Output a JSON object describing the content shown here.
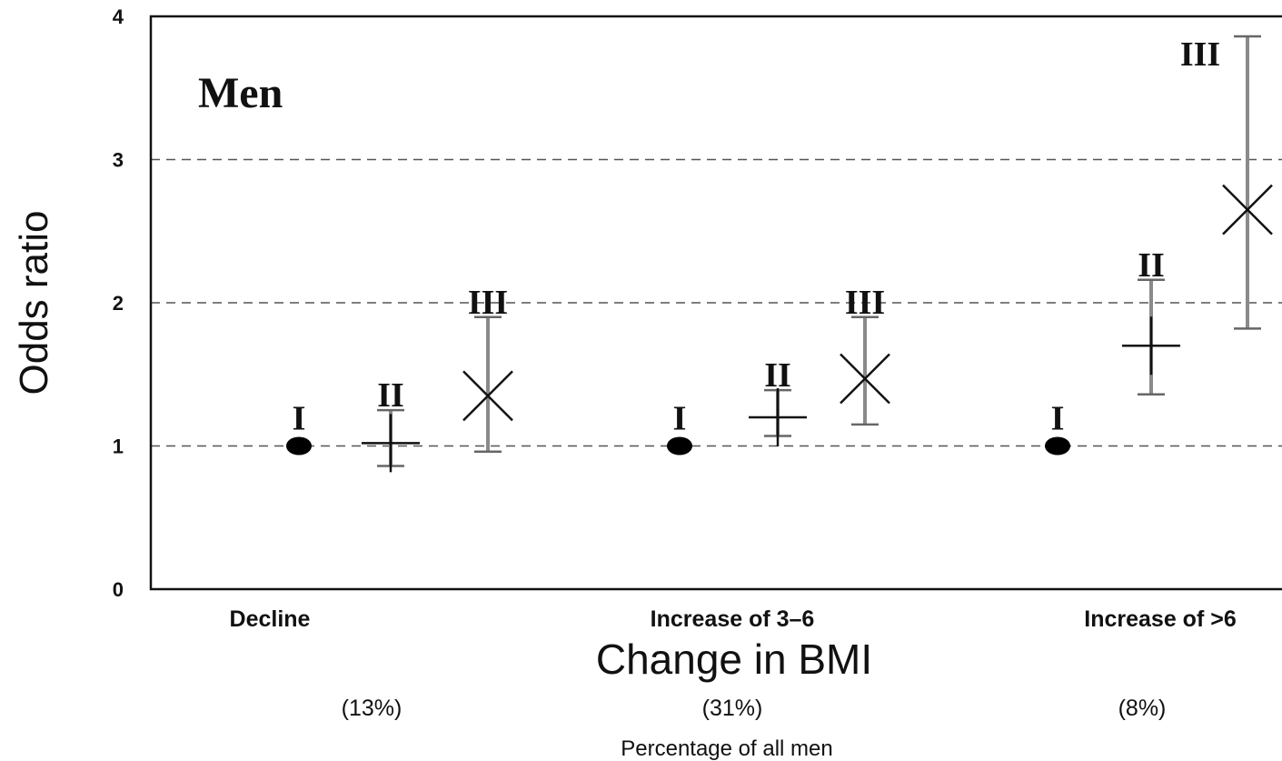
{
  "chart_data": {
    "type": "scatter",
    "title": "Men",
    "ylabel": "Odds ratio",
    "xlabel": "Change in BMI",
    "ylim": [
      0,
      4
    ],
    "yticks": [
      "0",
      "1",
      "2",
      "3",
      "4"
    ],
    "grid": "dashed horizontal lines at 1, 2, 3",
    "categories": [
      "Decline",
      "Increase of  3–6",
      "Increase of >6"
    ],
    "percent_labels": [
      "(13%)",
      "(31%)",
      "(8%)"
    ],
    "percent_caption": "Percentage of all men",
    "groups": [
      {
        "category": "Decline",
        "points": [
          {
            "label": "I",
            "marker": "dot",
            "value": 1.0,
            "low": null,
            "high": null
          },
          {
            "label": "II",
            "marker": "plus",
            "value": 1.02,
            "low": 0.86,
            "high": 1.25
          },
          {
            "label": "III",
            "marker": "cross",
            "value": 1.35,
            "low": 0.96,
            "high": 1.9
          }
        ]
      },
      {
        "category": "Increase of  3–6",
        "points": [
          {
            "label": "I",
            "marker": "dot",
            "value": 1.0,
            "low": null,
            "high": null
          },
          {
            "label": "II",
            "marker": "plus",
            "value": 1.2,
            "low": 1.07,
            "high": 1.39
          },
          {
            "label": "III",
            "marker": "cross",
            "value": 1.47,
            "low": 1.15,
            "high": 1.9
          }
        ]
      },
      {
        "category": "Increase of >6",
        "points": [
          {
            "label": "I",
            "marker": "dot",
            "value": 1.0,
            "low": null,
            "high": null
          },
          {
            "label": "II",
            "marker": "plus",
            "value": 1.7,
            "low": 1.36,
            "high": 2.16
          },
          {
            "label": "III",
            "marker": "cross",
            "value": 2.65,
            "low": 1.82,
            "high": 3.86
          }
        ]
      }
    ]
  }
}
